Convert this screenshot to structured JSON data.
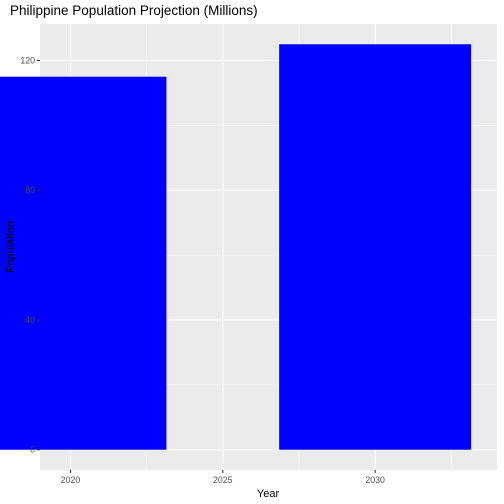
{
  "chart_data": {
    "type": "bar",
    "title": "Philippine Population Projection (Millions)",
    "xlabel": "Year",
    "ylabel": "Population",
    "x": [
      2020,
      2030
    ],
    "values": [
      115,
      125
    ],
    "xlim": [
      2019,
      2034
    ],
    "ylim": [
      -6.25,
      131.25
    ],
    "xticks": [
      2020,
      2025,
      2030
    ],
    "xtick_labels": [
      "2020",
      "2025",
      "2030"
    ],
    "yticks": [
      0,
      40,
      80,
      120
    ],
    "ytick_labels": [
      "0",
      "40",
      "80",
      "120"
    ],
    "bar_width_years": 6.3,
    "bar_color": "#0000ff",
    "panel_background": "#ebebeb",
    "grid": true,
    "grid_color": "#ffffff",
    "legend": "none"
  }
}
